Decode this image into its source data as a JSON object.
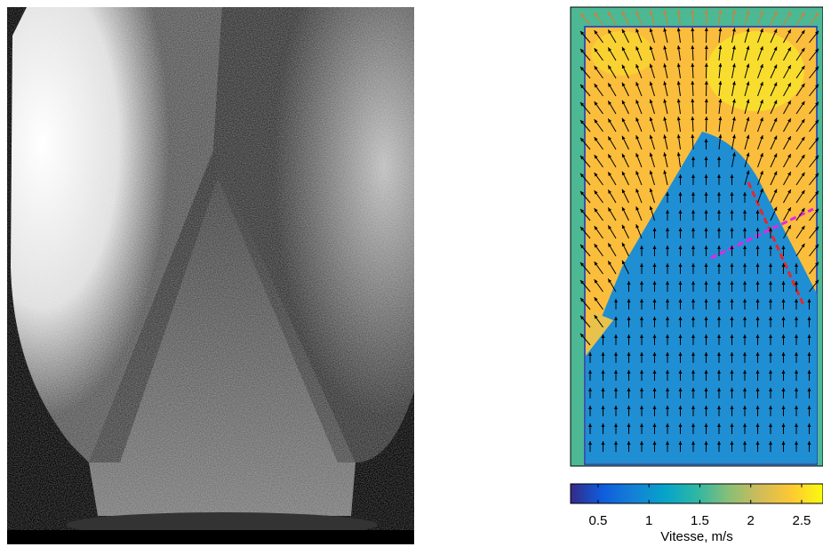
{
  "chart_data": {
    "type": "colorbar",
    "label": "Vitesse, m/s",
    "xlim": [
      0.23,
      2.71
    ],
    "xticks": [
      0.5,
      1,
      1.5,
      2,
      2.5
    ],
    "colors": [
      "#352a87",
      "#0f5cdd",
      "#1481d6",
      "#06a4ca",
      "#2eb7a4",
      "#87bf77",
      "#d1bb59",
      "#fec832",
      "#f9fb0e"
    ]
  }
}
